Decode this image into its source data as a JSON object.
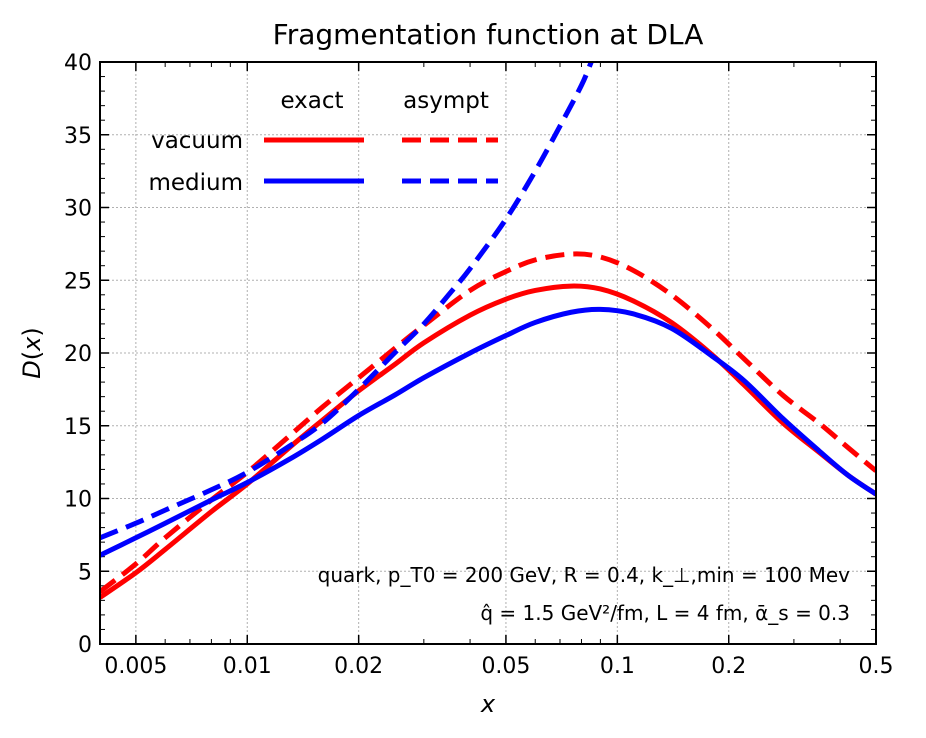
{
  "chart_data": {
    "type": "line",
    "title": "Fragmentation function at DLA",
    "xlabel": "x",
    "ylabel": "D(x)",
    "xscale": "log",
    "xlim": [
      0.004,
      0.5
    ],
    "ylim": [
      0,
      40
    ],
    "x_ticks": [
      {
        "value": 0.005,
        "label": "0.005"
      },
      {
        "value": 0.01,
        "label": "0.01"
      },
      {
        "value": 0.02,
        "label": "0.02"
      },
      {
        "value": 0.05,
        "label": "0.05"
      },
      {
        "value": 0.1,
        "label": "0.1"
      },
      {
        "value": 0.2,
        "label": "0.2"
      },
      {
        "value": 0.5,
        "label": "0.5"
      }
    ],
    "y_ticks": [
      0,
      5,
      10,
      15,
      20,
      25,
      30,
      35,
      40
    ],
    "grid": true,
    "legend": {
      "placement": "top-left",
      "col_headers": [
        "exact",
        "asympt"
      ],
      "row_labels": [
        "vacuum",
        "medium"
      ]
    },
    "annotations": [
      "quark, p_T0 = 200 GeV, R = 0.4, k_⊥,min = 100 Mev",
      "q̂ = 1.5 GeV²/fm, L = 4 fm, ᾱ_s = 0.3"
    ],
    "series": [
      {
        "name": "vacuum exact",
        "color": "#ff0000",
        "style": "solid",
        "x": [
          0.004,
          0.005,
          0.006,
          0.008,
          0.01,
          0.013,
          0.016,
          0.02,
          0.025,
          0.03,
          0.04,
          0.05,
          0.06,
          0.075,
          0.09,
          0.11,
          0.14,
          0.18,
          0.22,
          0.28,
          0.35,
          0.42,
          0.5
        ],
        "y": [
          3.2,
          4.9,
          6.5,
          9.1,
          11.0,
          13.5,
          15.4,
          17.4,
          19.2,
          20.7,
          22.6,
          23.7,
          24.3,
          24.6,
          24.4,
          23.6,
          22.1,
          19.9,
          17.8,
          15.2,
          13.2,
          11.6,
          10.3
        ]
      },
      {
        "name": "vacuum asympt",
        "color": "#ff0000",
        "style": "dashed",
        "x": [
          0.004,
          0.005,
          0.006,
          0.008,
          0.01,
          0.013,
          0.016,
          0.02,
          0.025,
          0.03,
          0.04,
          0.05,
          0.06,
          0.075,
          0.09,
          0.11,
          0.14,
          0.18,
          0.22,
          0.28,
          0.35,
          0.42,
          0.5
        ],
        "y": [
          3.6,
          5.5,
          7.3,
          9.9,
          11.8,
          14.3,
          16.3,
          18.3,
          20.3,
          21.9,
          24.3,
          25.6,
          26.4,
          26.8,
          26.6,
          25.7,
          24.0,
          21.7,
          19.6,
          17.1,
          15.2,
          13.5,
          11.9
        ]
      },
      {
        "name": "medium exact",
        "color": "#0000ff",
        "style": "solid",
        "x": [
          0.004,
          0.005,
          0.006,
          0.008,
          0.01,
          0.013,
          0.016,
          0.02,
          0.025,
          0.03,
          0.04,
          0.05,
          0.06,
          0.075,
          0.09,
          0.11,
          0.14,
          0.18,
          0.22,
          0.28,
          0.35,
          0.42,
          0.5
        ],
        "y": [
          6.1,
          7.3,
          8.3,
          9.9,
          11.1,
          12.7,
          14.1,
          15.7,
          17.1,
          18.3,
          20.0,
          21.2,
          22.1,
          22.8,
          23.0,
          22.7,
          21.7,
          19.8,
          18.1,
          15.5,
          13.3,
          11.6,
          10.3
        ]
      },
      {
        "name": "medium asympt",
        "color": "#0000ff",
        "style": "dashed",
        "x": [
          0.004,
          0.005,
          0.006,
          0.008,
          0.01,
          0.013,
          0.016,
          0.02,
          0.025,
          0.03,
          0.035,
          0.04,
          0.05,
          0.06,
          0.07,
          0.08,
          0.085
        ],
        "y": [
          7.3,
          8.3,
          9.2,
          10.6,
          11.8,
          13.6,
          15.2,
          17.5,
          20.0,
          22.0,
          24.0,
          25.8,
          29.2,
          32.5,
          35.6,
          38.4,
          40.0
        ]
      }
    ]
  }
}
